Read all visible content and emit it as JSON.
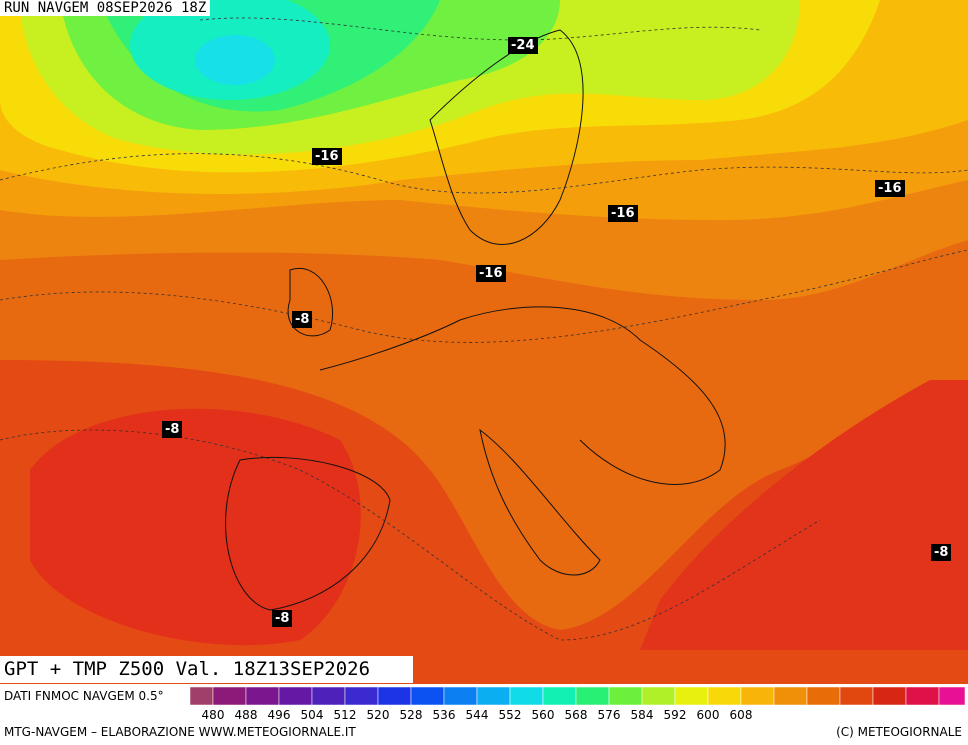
{
  "header": {
    "title": "RUN NAVGEM 08SEP2026 18Z"
  },
  "map": {
    "contour_labels": [
      "-24",
      "-16",
      "-16",
      "-16",
      "-16",
      "-8",
      "-8",
      "-8",
      "-8"
    ]
  },
  "caption": "GPT + TMP Z500 Val. 18Z13SEP2026",
  "legend": {
    "source": "DATI FNMOC NAVGEM 0.5°",
    "colors": [
      "#a0406a",
      "#8c1a78",
      "#7a168e",
      "#6418a4",
      "#4e22ba",
      "#3a2ad0",
      "#1c34e6",
      "#0c52f2",
      "#0c80f2",
      "#0caef2",
      "#10dce8",
      "#12f0b4",
      "#28f074",
      "#6cf03c",
      "#b0f028",
      "#e8f010",
      "#f8d808",
      "#f8b408",
      "#f09008",
      "#e86c08",
      "#e04810",
      "#d82614",
      "#e01048",
      "#e81094"
    ],
    "ticks": [
      480,
      488,
      496,
      504,
      512,
      520,
      528,
      536,
      544,
      552,
      560,
      568,
      576,
      584,
      592,
      600,
      608
    ]
  },
  "footer": {
    "left": "MTG-NAVGEM – ELABORAZIONE WWW.METEOGIORNALE.IT",
    "right": "(C) METEOGIORNALE"
  }
}
